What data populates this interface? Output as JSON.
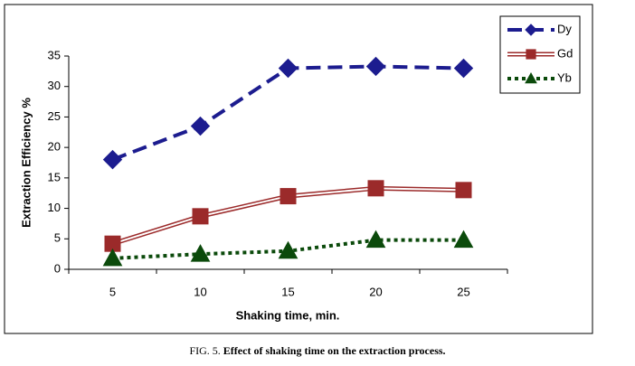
{
  "chart_data": {
    "type": "line",
    "x_label": "Shaking time, min.",
    "y_label": "Extraction Efficiency %",
    "categories": [
      "5",
      "10",
      "15",
      "20",
      "25"
    ],
    "series": [
      {
        "name": "Dy",
        "color": "#1c1c8f",
        "marker": "diamond",
        "dash": "dashed",
        "values": [
          18,
          23.5,
          33,
          33.3,
          33
        ]
      },
      {
        "name": "Gd",
        "color": "#9b2a2a",
        "marker": "square",
        "dash": "double",
        "values": [
          4.2,
          8.7,
          12,
          13.3,
          13
        ]
      },
      {
        "name": "Yb",
        "color": "#0b4a0b",
        "marker": "triangle",
        "dash": "dotted",
        "values": [
          1.8,
          2.5,
          3,
          4.8,
          4.8
        ]
      }
    ],
    "ylim": [
      0,
      35
    ],
    "yticks": [
      0,
      5,
      10,
      15,
      20,
      25,
      30,
      35
    ],
    "legend": "top-right"
  },
  "caption": {
    "label": "FIG. 5.",
    "text": "Effect of shaking time on the extraction process."
  }
}
